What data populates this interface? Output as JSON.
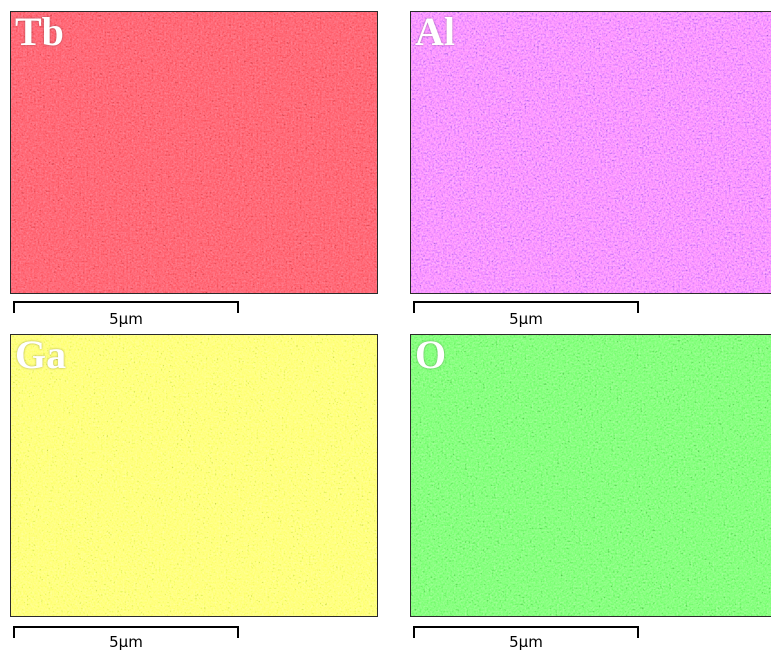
{
  "panels": [
    {
      "id": "tb",
      "element": "Tb",
      "color": "#c8141a",
      "scale_label": "5μm"
    },
    {
      "id": "al",
      "element": "Al",
      "color": "#8a2bd6",
      "scale_label": "5μm"
    },
    {
      "id": "ga",
      "element": "Ga",
      "color": "#b8d21e",
      "scale_label": "5μm"
    },
    {
      "id": "o",
      "element": "O",
      "color": "#22b81e",
      "scale_label": "5μm"
    }
  ]
}
